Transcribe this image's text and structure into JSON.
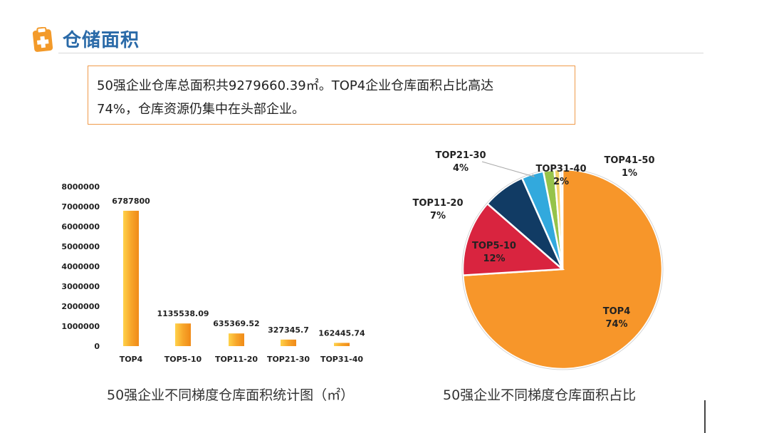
{
  "header": {
    "title": "仓储面积"
  },
  "summary": {
    "line1": "50强企业仓库总面积共9279660.39㎡。TOP4企业仓库面积占比高达",
    "line2": "74%，仓库资源仍集中在头部企业。"
  },
  "colors": {
    "title": "#2a6aa8",
    "box_border": "#ef9a4a",
    "icon": "#f39a2a",
    "bar_light": "#ffd24a",
    "bar_dark": "#f08a18",
    "pie": [
      "#f7962a",
      "#d9243f",
      "#113b64",
      "#32a9dd",
      "#96c34a",
      "#f3d268",
      "#e6e6e6"
    ]
  },
  "chart_data": [
    {
      "type": "bar",
      "title": "50强企业不同梯度仓库面积统计图（㎡）",
      "categories": [
        "TOP4",
        "TOP5-10",
        "TOP11-20",
        "TOP21-30",
        "TOP31-40"
      ],
      "values": [
        6787800,
        1135538.09,
        635369.52,
        327345.7,
        162445.74
      ],
      "data_labels": [
        "6787800",
        "1135538.09",
        "635369.52",
        "327345.7",
        "162445.74"
      ],
      "yticks": [
        "0",
        "1000000",
        "2000000",
        "3000000",
        "4000000",
        "5000000",
        "6000000",
        "7000000",
        "8000000"
      ],
      "ylim": [
        0,
        8000000
      ],
      "grid": false
    },
    {
      "type": "pie",
      "title": "50强企业不同梯度仓库面积占比",
      "slices": [
        {
          "name": "TOP4",
          "percent_label": "74%",
          "value": 73.15
        },
        {
          "name": "TOP5-10",
          "percent_label": "12%",
          "value": 12.24
        },
        {
          "name": "TOP11-20",
          "percent_label": "7%",
          "value": 6.85
        },
        {
          "name": "TOP21-30",
          "percent_label": "4%",
          "value": 3.53
        },
        {
          "name": "TOP31-40",
          "percent_label": "2%",
          "value": 1.75
        },
        {
          "name": "TOP41-50",
          "percent_label": "1%",
          "value": 0.9
        },
        {
          "name": "",
          "percent_label": "",
          "value": 0.4
        }
      ]
    }
  ]
}
